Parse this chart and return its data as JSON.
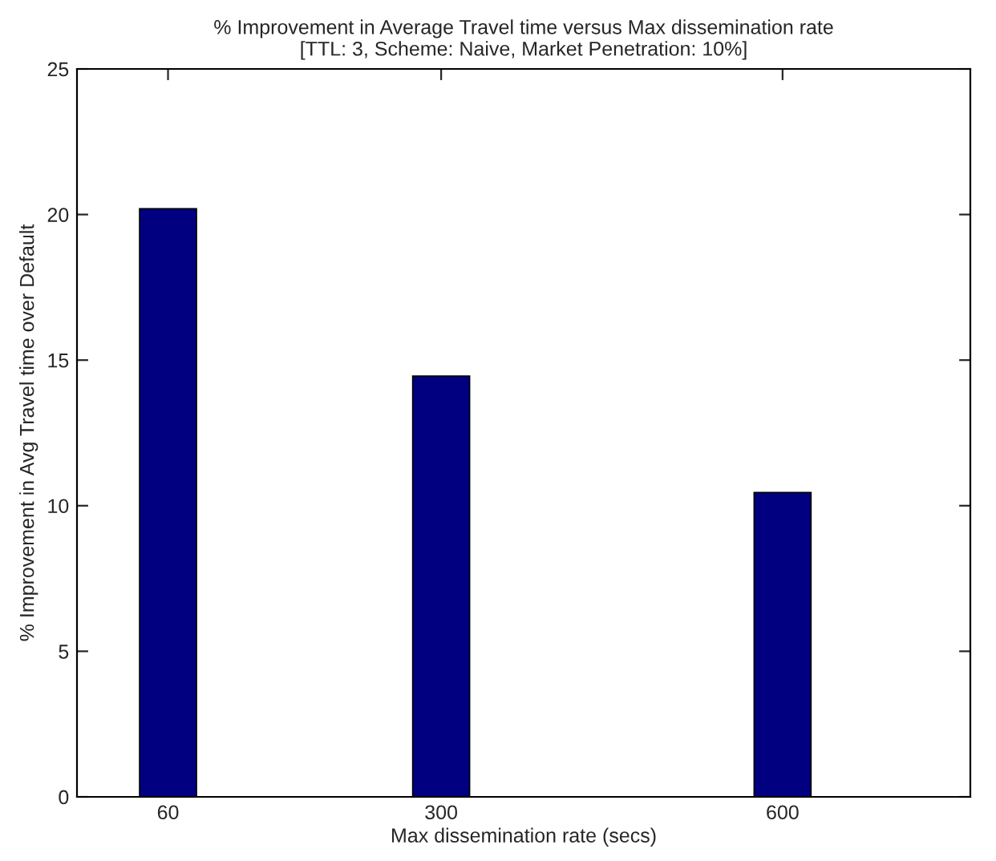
{
  "chart_data": {
    "type": "bar",
    "title": "% Improvement in Average Travel time versus Max dissemination rate\n[TTL: 3, Scheme: Naive, Market Penetration: 10%]",
    "xlabel": "Max dissemination rate (secs)",
    "ylabel": "% Improvement in Avg Travel time over Default",
    "x": [
      60,
      300,
      600
    ],
    "values": [
      20.2,
      14.45,
      10.45
    ],
    "color": "#000080",
    "xlim": [
      -20,
      765
    ],
    "xticks": [
      60,
      300,
      600
    ],
    "ylim": [
      0,
      25
    ],
    "yticks": [
      0,
      5,
      10,
      15,
      20,
      25
    ],
    "grid": false
  }
}
